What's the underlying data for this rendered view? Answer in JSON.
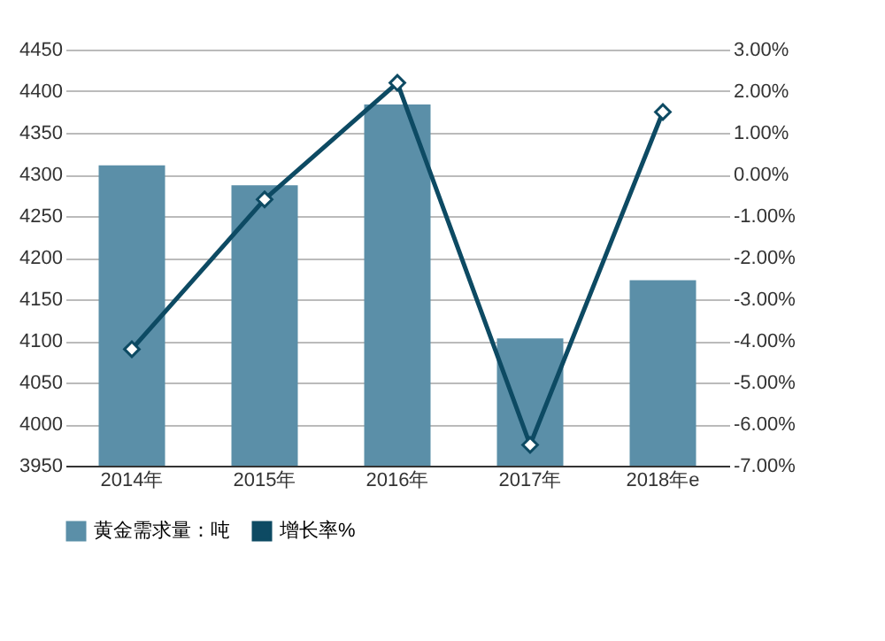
{
  "chart_data": {
    "type": "bar",
    "categories": [
      "2014年",
      "2015年",
      "2016年",
      "2017年",
      "2018年e"
    ],
    "series": [
      {
        "name": "黄金需求量：吨",
        "color": "#5b8fa8",
        "values": [
          4311,
          4287,
          4384,
          4103,
          4173
        ]
      },
      {
        "name": "增长率%",
        "type": "line",
        "axis": "y2",
        "color": "#0d4a63",
        "values": [
          -4.2,
          -0.6,
          2.2,
          -6.5,
          1.5
        ]
      }
    ],
    "ylim": [
      3950,
      4450
    ],
    "yticks": [
      3950,
      4000,
      4050,
      4100,
      4150,
      4200,
      4250,
      4300,
      4350,
      4400,
      4450
    ],
    "y2lim": [
      -7,
      3
    ],
    "y2ticks": [
      {
        "value": -7,
        "label": "-7.00%"
      },
      {
        "value": -6,
        "label": "-6.00%"
      },
      {
        "value": -5,
        "label": "-5.00%"
      },
      {
        "value": -4,
        "label": "-4.00%"
      },
      {
        "value": -3,
        "label": "-3.00%"
      },
      {
        "value": -2,
        "label": "-2.00%"
      },
      {
        "value": -1,
        "label": "-1.00%"
      },
      {
        "value": 0,
        "label": "0.00%"
      },
      {
        "value": 1,
        "label": "1.00%"
      },
      {
        "value": 2,
        "label": "2.00%"
      },
      {
        "value": 3,
        "label": "3.00%"
      }
    ],
    "grid": "y",
    "legend": "bottom",
    "marker": "diamond",
    "line_style": "solid"
  }
}
